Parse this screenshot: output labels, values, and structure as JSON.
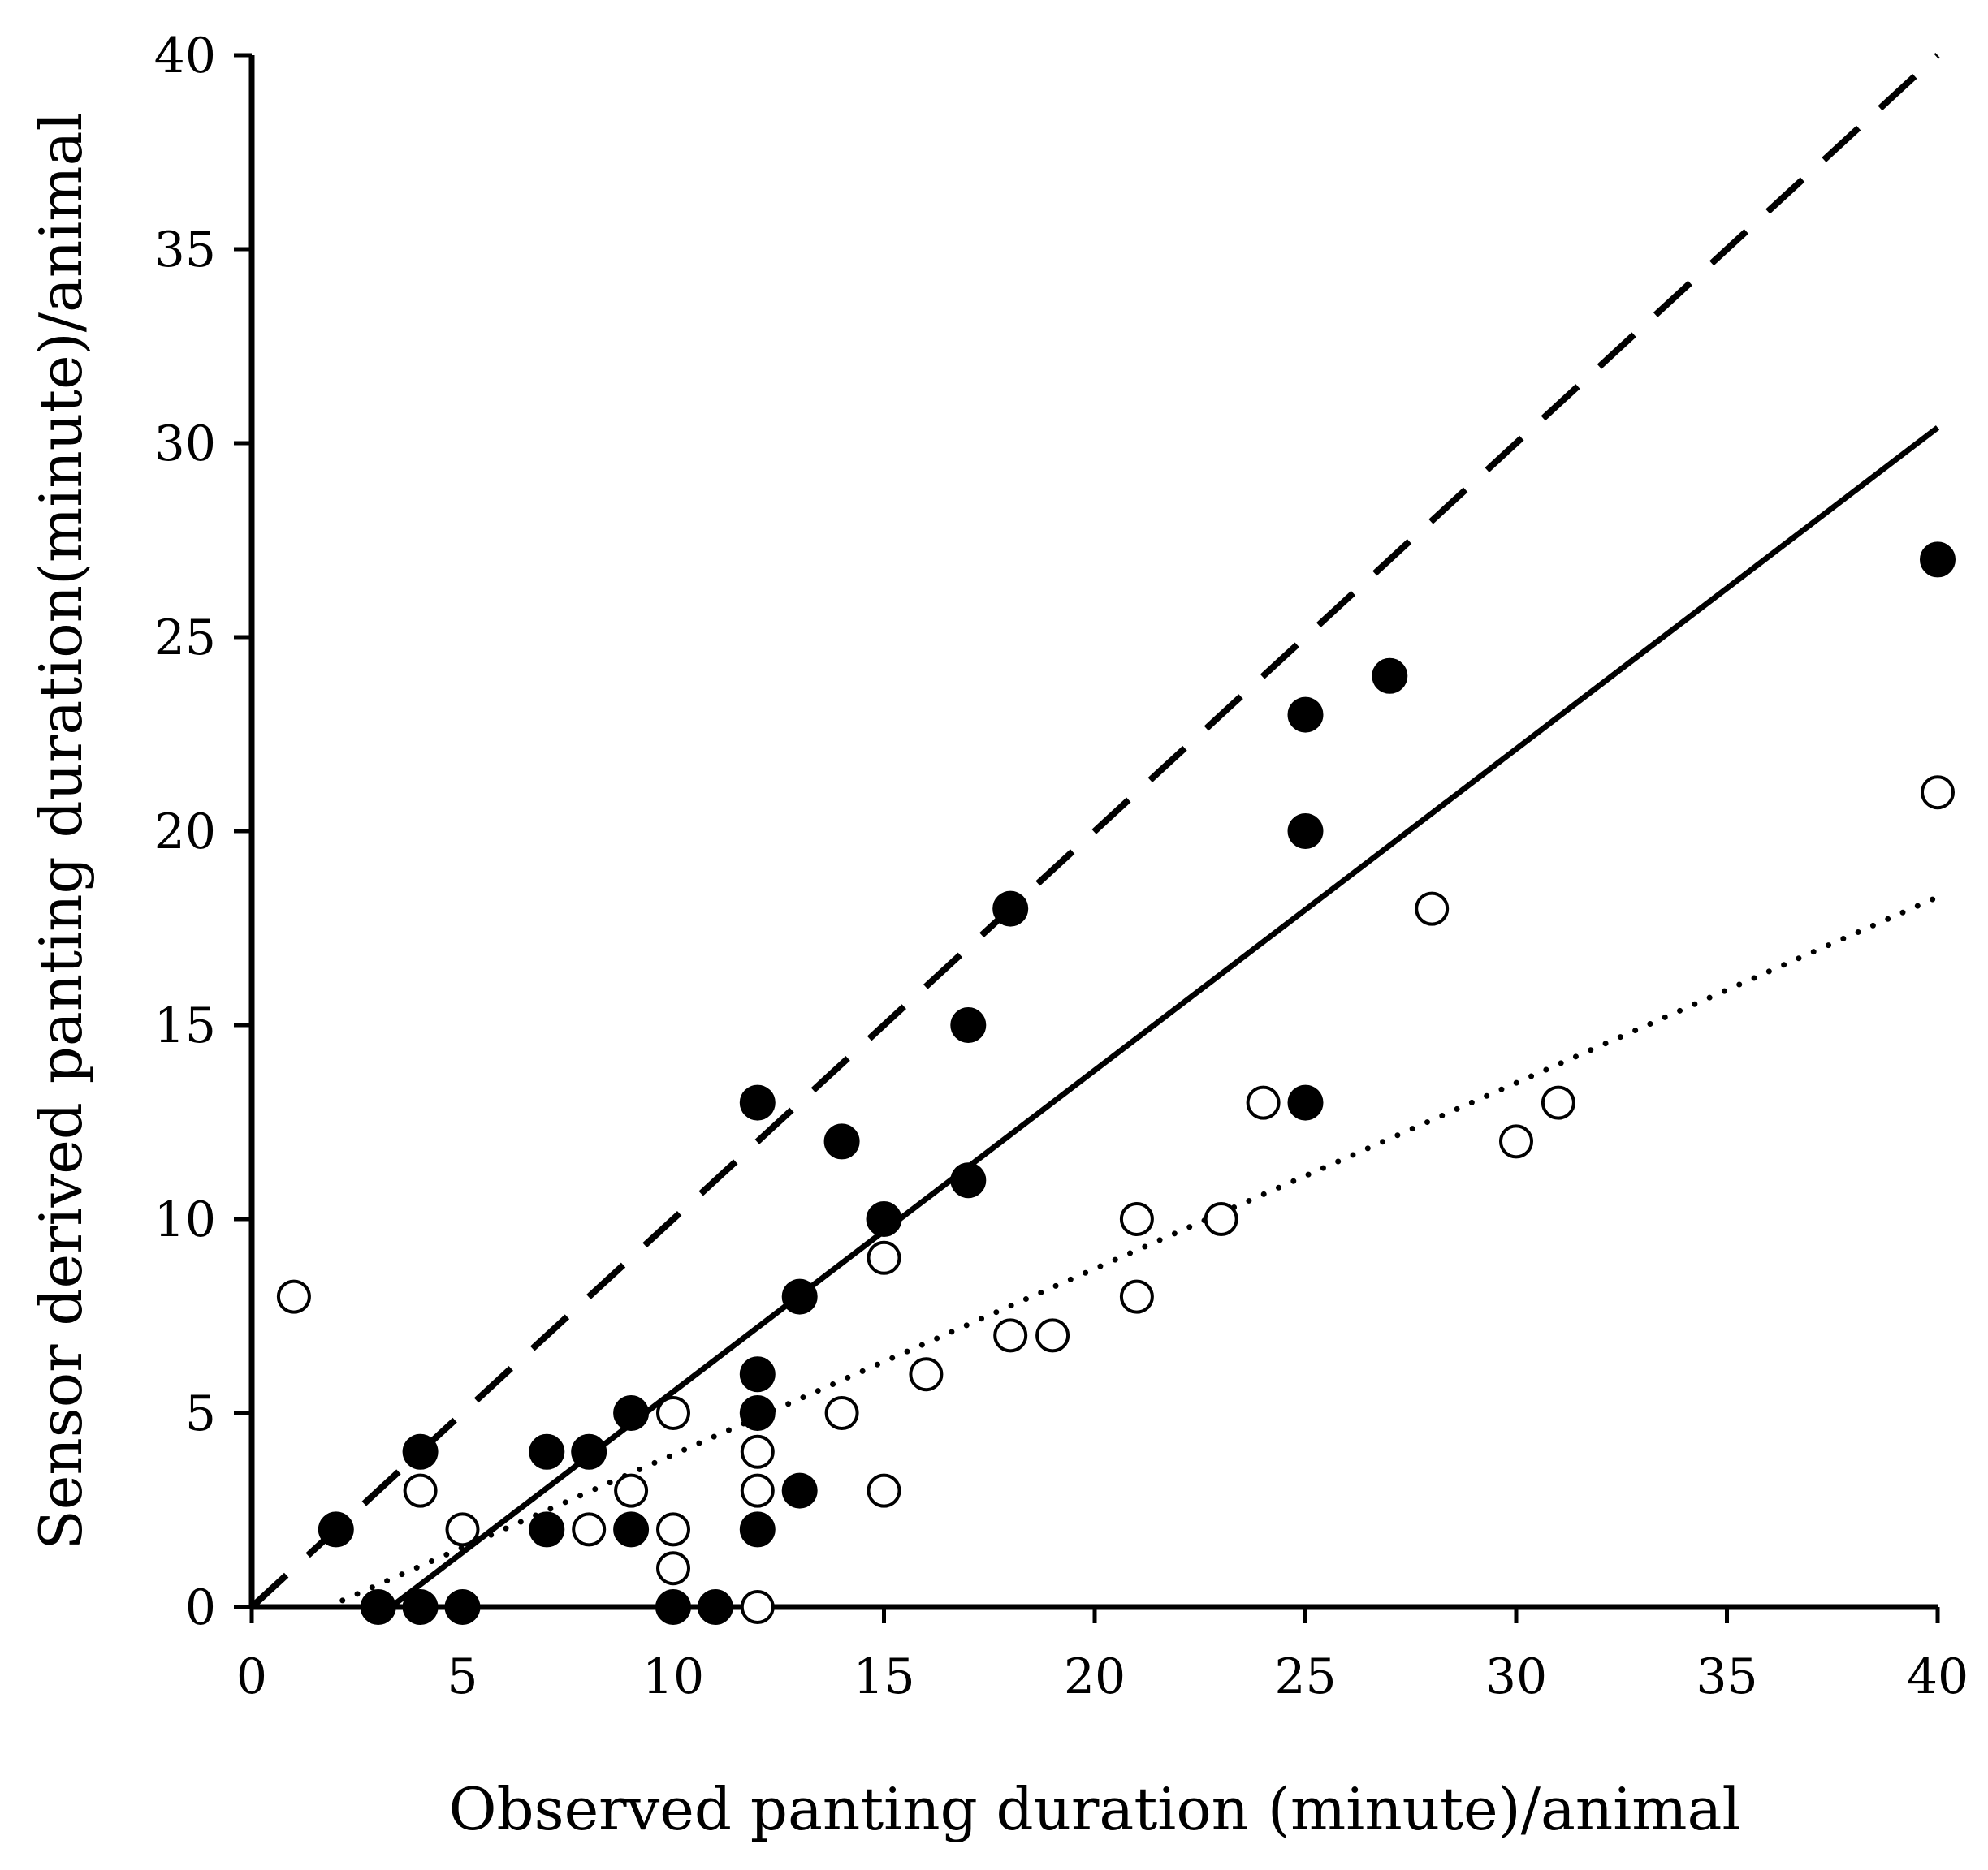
{
  "chart_data": {
    "type": "scatter",
    "title": "",
    "xlabel": "Observed panting duration (minute)/animal",
    "ylabel": "Sensor derived panting duration(minute)/animal",
    "xlim": [
      0,
      40
    ],
    "ylim": [
      0,
      40
    ],
    "xticks": [
      "0",
      "5",
      "10",
      "15",
      "20",
      "25",
      "30",
      "35",
      "40"
    ],
    "yticks": [
      "0",
      "5",
      "10",
      "15",
      "20",
      "25",
      "30",
      "35",
      "40"
    ],
    "grid": false,
    "legend": "none",
    "series": [
      {
        "name": "filled",
        "marker": "filled-circle",
        "color": "#000000",
        "points": [
          [
            2,
            2
          ],
          [
            3,
            0
          ],
          [
            4,
            0
          ],
          [
            4,
            4
          ],
          [
            5,
            0
          ],
          [
            7,
            4
          ],
          [
            7,
            2
          ],
          [
            8,
            4
          ],
          [
            9,
            5
          ],
          [
            9,
            2
          ],
          [
            10,
            0
          ],
          [
            11,
            0
          ],
          [
            12,
            13
          ],
          [
            12,
            6
          ],
          [
            12,
            5
          ],
          [
            12,
            2
          ],
          [
            13,
            8
          ],
          [
            13,
            3
          ],
          [
            14,
            12
          ],
          [
            15,
            10
          ],
          [
            17,
            15
          ],
          [
            17,
            11
          ],
          [
            18,
            18
          ],
          [
            25,
            23
          ],
          [
            25,
            20
          ],
          [
            25,
            13
          ],
          [
            27,
            24
          ],
          [
            40,
            27
          ]
        ]
      },
      {
        "name": "open",
        "marker": "open-circle",
        "color": "#000000",
        "points": [
          [
            1,
            8
          ],
          [
            4,
            3
          ],
          [
            5,
            2
          ],
          [
            8,
            2
          ],
          [
            9,
            3
          ],
          [
            10,
            5
          ],
          [
            10,
            2
          ],
          [
            10,
            1
          ],
          [
            12,
            4
          ],
          [
            12,
            3
          ],
          [
            12,
            0
          ],
          [
            14,
            5
          ],
          [
            15,
            9
          ],
          [
            15,
            3
          ],
          [
            16,
            6
          ],
          [
            18,
            7
          ],
          [
            19,
            7
          ],
          [
            21,
            10
          ],
          [
            21,
            8
          ],
          [
            23,
            10
          ],
          [
            24,
            13
          ],
          [
            28,
            18
          ],
          [
            30,
            12
          ],
          [
            31,
            13
          ],
          [
            40,
            21
          ]
        ]
      }
    ],
    "lines": [
      {
        "name": "identity",
        "style": "dashed",
        "x": [
          0,
          40
        ],
        "y": [
          0,
          40
        ]
      },
      {
        "name": "fit-filled",
        "style": "solid",
        "x": [
          3.3,
          40
        ],
        "y": [
          0,
          30.4
        ]
      },
      {
        "name": "fit-open",
        "style": "dotted",
        "x": [
          1.8,
          40
        ],
        "y": [
          0,
          18.3
        ]
      }
    ]
  }
}
